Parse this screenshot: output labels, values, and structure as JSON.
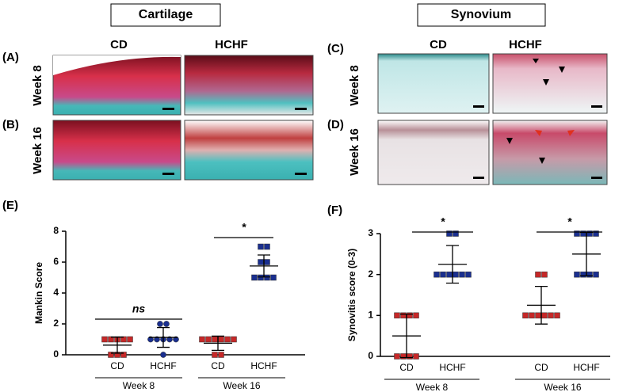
{
  "cartilage": {
    "title": "Cartilage",
    "columns": [
      "CD",
      "HCHF"
    ],
    "rows": [
      {
        "label": "(A)",
        "week": "Week 8"
      },
      {
        "label": "(B)",
        "week": "Week 16"
      }
    ]
  },
  "synovium": {
    "title": "Synovium",
    "columns": [
      "CD",
      "HCHF"
    ],
    "rows": [
      {
        "label": "(C)",
        "week": "Week 8"
      },
      {
        "label": "(D)",
        "week": "Week 16"
      }
    ]
  },
  "chart_data": [
    {
      "type": "dotplot",
      "panel": "(E)",
      "y_label": "Mankin Score",
      "ylim": [
        0,
        8
      ],
      "yticks": [
        0,
        2,
        4,
        6,
        8
      ],
      "groups": [
        "Week 8",
        "Week 16"
      ],
      "annotations": [
        "ns",
        "*"
      ],
      "series": [
        {
          "name": "CD",
          "color": "#c62828",
          "marker": "square",
          "values": [
            0,
            0,
            0,
            1,
            1,
            1,
            1,
            1
          ],
          "mean": 0.625,
          "sd": 0.52
        },
        {
          "name": "HCHF",
          "color": "#1a2f8f",
          "marker": "circle",
          "values": [
            0,
            1,
            1,
            1,
            1,
            1,
            2,
            2
          ],
          "mean": 1.125,
          "sd": 0.64
        },
        {
          "name": "CD",
          "color": "#c62828",
          "marker": "square",
          "values": [
            0,
            0,
            1,
            1,
            1,
            1,
            1,
            1
          ],
          "mean": 0.75,
          "sd": 0.46
        },
        {
          "name": "HCHF",
          "color": "#1a2f8f",
          "marker": "square",
          "values": [
            5,
            5,
            5,
            5,
            6,
            6,
            7,
            7
          ],
          "mean": 5.75,
          "sd": 0.71
        }
      ]
    },
    {
      "type": "dotplot",
      "panel": "(F)",
      "y_label": "Synovitis score (0-3)",
      "ylim": [
        0,
        3
      ],
      "yticks": [
        0,
        1,
        2,
        3
      ],
      "groups": [
        "Week 8",
        "Week 16"
      ],
      "annotations": [
        "*",
        "*"
      ],
      "series": [
        {
          "name": "CD",
          "color": "#c62828",
          "marker": "square",
          "values": [
            0,
            0,
            0,
            0,
            1,
            1,
            1,
            1
          ],
          "mean": 0.5,
          "sd": 0.53
        },
        {
          "name": "HCHF",
          "color": "#1a2f8f",
          "marker": "square",
          "values": [
            2,
            2,
            2,
            2,
            2,
            2,
            3,
            3
          ],
          "mean": 2.25,
          "sd": 0.46
        },
        {
          "name": "CD",
          "color": "#c62828",
          "marker": "square",
          "values": [
            1,
            1,
            1,
            1,
            1,
            1,
            2,
            2
          ],
          "mean": 1.25,
          "sd": 0.46
        },
        {
          "name": "HCHF",
          "color": "#1a2f8f",
          "marker": "square",
          "values": [
            2,
            2,
            2,
            2,
            3,
            3,
            3,
            3
          ],
          "mean": 2.5,
          "sd": 0.53
        }
      ]
    }
  ]
}
